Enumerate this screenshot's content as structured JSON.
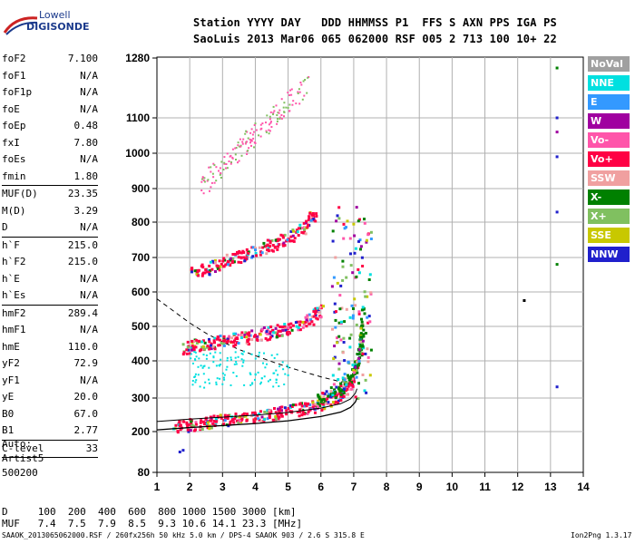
{
  "logo": {
    "line1": "Lowell",
    "line2": "DIGISONDE"
  },
  "header": {
    "row1": "Station YYYY DAY   DDD HHMMSS P1  FFS S AXN PPS IGA PS",
    "row2": "SaoLuis 2013 Mar06 065 062000 RSF 005 2 713 100 10+ 22"
  },
  "parameters": [
    {
      "group": [
        {
          "label": "foF2",
          "value": "7.100"
        },
        {
          "label": "foF1",
          "value": "N/A"
        },
        {
          "label": "foF1p",
          "value": "N/A"
        },
        {
          "label": "foE",
          "value": "N/A"
        },
        {
          "label": "foEp",
          "value": "0.48"
        },
        {
          "label": "fxI",
          "value": "7.80"
        },
        {
          "label": "foEs",
          "value": "N/A"
        },
        {
          "label": "fmin",
          "value": "1.80"
        }
      ]
    },
    {
      "group": [
        {
          "label": "MUF(D)",
          "value": "23.35"
        },
        {
          "label": "M(D)",
          "value": "3.29"
        },
        {
          "label": "D",
          "value": "N/A"
        }
      ]
    },
    {
      "group": [
        {
          "label": "h`F",
          "value": "215.0"
        },
        {
          "label": "h`F2",
          "value": "215.0"
        },
        {
          "label": "h`E",
          "value": "N/A"
        },
        {
          "label": "h`Es",
          "value": "N/A"
        }
      ]
    },
    {
      "group": [
        {
          "label": "hmF2",
          "value": "289.4"
        },
        {
          "label": "hmF1",
          "value": "N/A"
        },
        {
          "label": "hmE",
          "value": "110.0"
        },
        {
          "label": "yF2",
          "value": "72.9"
        },
        {
          "label": "yF1",
          "value": "N/A"
        },
        {
          "label": "yE",
          "value": "20.0"
        },
        {
          "label": "B0",
          "value": "67.0"
        },
        {
          "label": "B1",
          "value": "2.77"
        }
      ]
    },
    {
      "group": [
        {
          "label": "C-level",
          "value": "33"
        }
      ]
    }
  ],
  "autoscaling": {
    "line1": "Auto:",
    "line2": "Artist5",
    "line3": "500200"
  },
  "legend": [
    {
      "label": "NoVal",
      "color": "#a0a0a0"
    },
    {
      "label": "NNE",
      "color": "#00e0e0"
    },
    {
      "label": "E",
      "color": "#3399ff"
    },
    {
      "label": "W",
      "color": "#a000a0"
    },
    {
      "label": "Vo-",
      "color": "#ff55aa"
    },
    {
      "label": "Vo+",
      "color": "#ff0044"
    },
    {
      "label": "SSW",
      "color": "#f0a0a0"
    },
    {
      "label": "X-",
      "color": "#008000"
    },
    {
      "label": "X+",
      "color": "#80c060"
    },
    {
      "label": "SSE",
      "color": "#c8c800"
    },
    {
      "label": "NNW",
      "color": "#2020cc"
    }
  ],
  "dmuf": {
    "d_row": "D     100  200  400  600  800 1000 1500 3000 [km]",
    "muf_row": "MUF   7.4  7.5  7.9  8.5  9.3 10.6 14.1 23.3 [MHz]"
  },
  "footer": {
    "left": "SAAOK_2013065062000.RSF / 260fx256h 50 kHz 5.0 km / DPS-4 SAAOK 903 / 2.6 S 315.8 E",
    "right": "Ion2Png 1.3.17"
  },
  "chart_data": {
    "type": "scatter",
    "title": "",
    "xlabel": "",
    "ylabel": "",
    "x_ticks": [
      1,
      2,
      3,
      4,
      5,
      6,
      7,
      8,
      9,
      10,
      11,
      12,
      13,
      14
    ],
    "y_ticks": [
      80,
      200,
      300,
      400,
      500,
      600,
      700,
      800,
      900,
      1000,
      1100,
      1280
    ],
    "xlim": [
      1,
      14
    ],
    "y_scale": "compressed",
    "grid": true,
    "traces": [
      {
        "name": "F2 trace",
        "color": "#ff0044",
        "x": [
          1.5,
          2.0,
          2.5,
          3.0,
          3.5,
          4.0,
          4.5,
          5.0,
          5.5,
          6.0,
          6.5,
          6.8,
          7.0
        ],
        "y": [
          220,
          222,
          228,
          235,
          240,
          247,
          255,
          262,
          272,
          285,
          305,
          330,
          360
        ]
      },
      {
        "name": "2F trace",
        "color": "#ff0044",
        "x": [
          1.8,
          2.2,
          2.7,
          3.2,
          3.7,
          4.2,
          4.7,
          5.2,
          5.7,
          6.0
        ],
        "y": [
          440,
          448,
          455,
          462,
          470,
          480,
          492,
          505,
          525,
          555
        ]
      },
      {
        "name": "3F trace",
        "color": "#ff0044",
        "x": [
          2.0,
          2.5,
          3.0,
          3.5,
          4.0,
          4.5,
          5.0,
          5.5,
          5.8
        ],
        "y": [
          655,
          670,
          690,
          705,
          720,
          740,
          760,
          790,
          830
        ]
      },
      {
        "name": "X trace",
        "color": "#008000",
        "x": [
          5.8,
          6.2,
          6.6,
          6.9,
          7.1,
          7.2,
          7.25
        ],
        "y": [
          290,
          310,
          330,
          360,
          400,
          450,
          560
        ]
      }
    ],
    "profile": {
      "x": [
        1.0,
        2.0,
        3.0,
        4.0,
        5.0,
        6.0,
        6.6,
        6.9,
        7.05,
        7.1
      ],
      "y": [
        205,
        212,
        218,
        224,
        232,
        245,
        258,
        272,
        288,
        300
      ]
    },
    "dashed_muf": {
      "x": [
        1.0,
        1.5,
        2.0,
        2.5,
        3.0,
        3.5,
        4.0,
        4.5,
        5.0,
        5.5,
        6.0,
        6.5,
        7.0
      ],
      "y": [
        580,
        545,
        510,
        480,
        455,
        433,
        415,
        398,
        383,
        370,
        357,
        346,
        337
      ]
    },
    "isolated_points": [
      {
        "x": 12.2,
        "y": 575,
        "color": "#000000"
      },
      {
        "x": 13.2,
        "y": 1250,
        "color": "#008000"
      },
      {
        "x": 13.2,
        "y": 1100,
        "color": "#2020cc"
      },
      {
        "x": 13.2,
        "y": 1060,
        "color": "#a000a0"
      },
      {
        "x": 13.2,
        "y": 990,
        "color": "#2020cc"
      },
      {
        "x": 13.2,
        "y": 830,
        "color": "#2020cc"
      },
      {
        "x": 13.2,
        "y": 680,
        "color": "#008000"
      },
      {
        "x": 13.2,
        "y": 330,
        "color": "#2020cc"
      },
      {
        "x": 1.8,
        "y": 145,
        "color": "#2020cc"
      },
      {
        "x": 1.7,
        "y": 140,
        "color": "#2020cc"
      }
    ]
  }
}
